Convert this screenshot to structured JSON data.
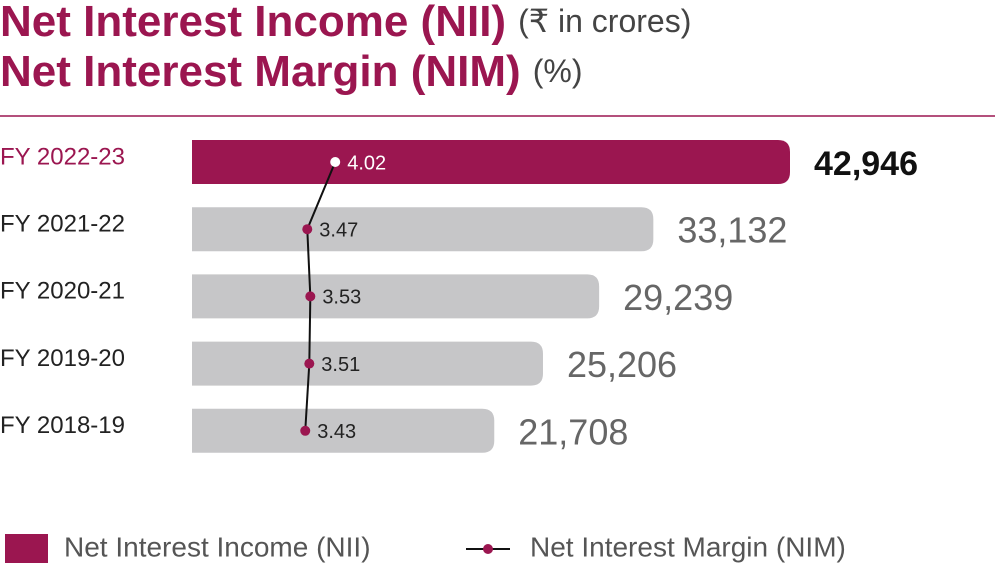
{
  "chart_data": {
    "type": "bar-line",
    "title": "Net Interest Income (NII)",
    "title_unit": "(₹ in crores)",
    "subtitle": "Net Interest Margin (NIM)",
    "subtitle_unit": "(%)",
    "categories": [
      "FY 2022-23",
      "FY 2021-22",
      "FY 2020-21",
      "FY 2019-20",
      "FY 2018-19"
    ],
    "category_colors": [
      "#9b1650",
      "#222222",
      "#222222",
      "#222222",
      "#222222"
    ],
    "series": [
      {
        "name": "Net Interest Income (NII)",
        "color": "#9b1650",
        "bar_colors": [
          "#9b1650",
          "#c6c6c8",
          "#c6c6c8",
          "#c6c6c8",
          "#c6c6c8"
        ],
        "values": [
          42946,
          33132,
          29239,
          25206,
          21708
        ],
        "value_labels": [
          "42,946",
          "33,132",
          "29,239",
          "25,206",
          "21,708"
        ]
      },
      {
        "name": "Net Interest Margin (NIM)",
        "color": "#9b1650",
        "point_colors": [
          "#ffffff",
          "#9b1650",
          "#9b1650",
          "#9b1650",
          "#9b1650"
        ],
        "values": [
          4.02,
          3.47,
          3.53,
          3.51,
          3.43
        ]
      }
    ]
  }
}
